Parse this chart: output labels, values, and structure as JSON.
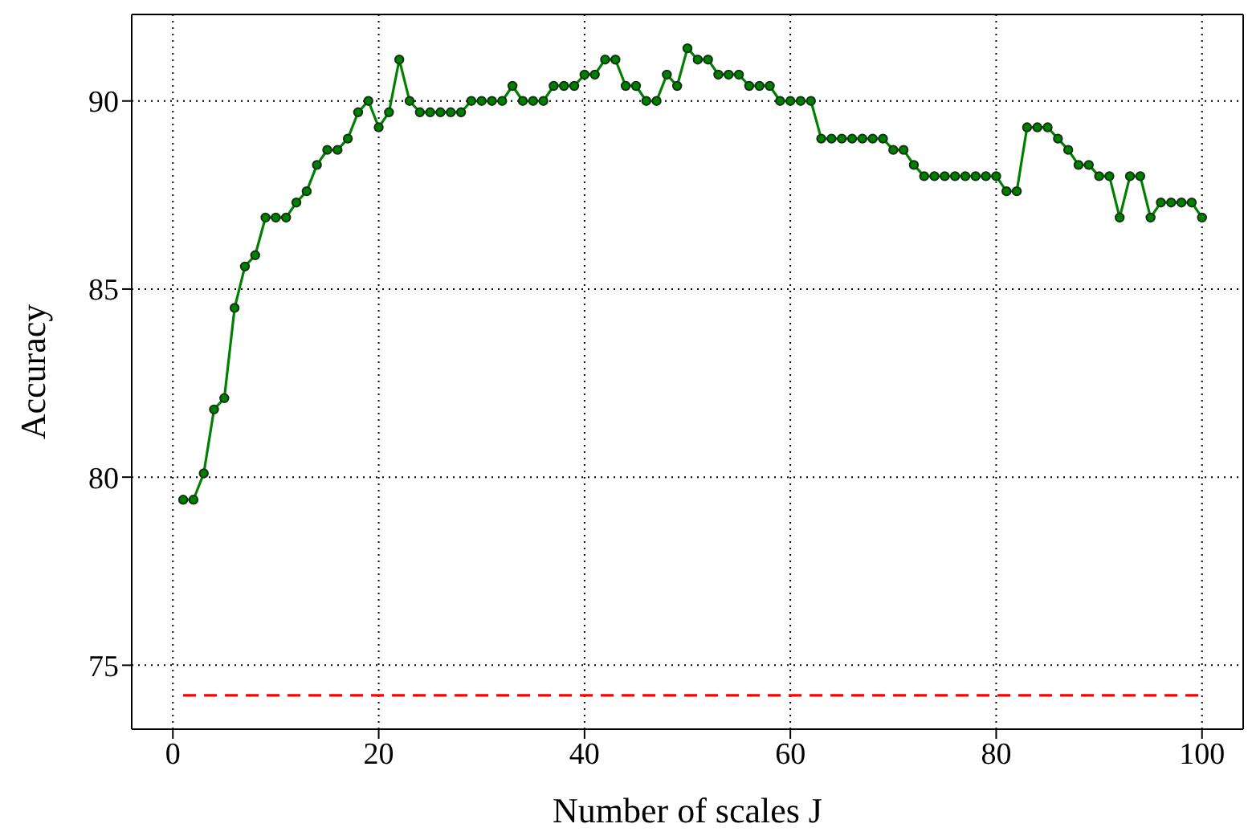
{
  "chart_data": {
    "type": "line",
    "xlabel": "Number of scales J",
    "ylabel": "Accuracy",
    "x": [
      1,
      2,
      3,
      4,
      5,
      6,
      7,
      8,
      9,
      10,
      11,
      12,
      13,
      14,
      15,
      16,
      17,
      18,
      19,
      20,
      21,
      22,
      23,
      24,
      25,
      26,
      27,
      28,
      29,
      30,
      31,
      32,
      33,
      34,
      35,
      36,
      37,
      38,
      39,
      40,
      41,
      42,
      43,
      44,
      45,
      46,
      47,
      48,
      49,
      50,
      51,
      52,
      53,
      54,
      55,
      56,
      57,
      58,
      59,
      60,
      61,
      62,
      63,
      64,
      65,
      66,
      67,
      68,
      69,
      70,
      71,
      72,
      73,
      74,
      75,
      76,
      77,
      78,
      79,
      80,
      81,
      82,
      83,
      84,
      85,
      86,
      87,
      88,
      89,
      90,
      91,
      92,
      93,
      94,
      95,
      96,
      97,
      98,
      99,
      100
    ],
    "series": [
      {
        "color": "#008000",
        "marker": "circle",
        "line_style": "solid",
        "values": [
          79.4,
          79.4,
          80.1,
          81.8,
          82.1,
          84.5,
          85.6,
          85.9,
          86.9,
          86.9,
          86.9,
          87.3,
          87.6,
          88.3,
          88.7,
          88.7,
          89.0,
          89.7,
          90.0,
          89.3,
          89.7,
          91.1,
          90.0,
          89.7,
          89.7,
          89.7,
          89.7,
          89.7,
          90.0,
          90.0,
          90.0,
          90.0,
          90.4,
          90.0,
          90.0,
          90.0,
          90.4,
          90.4,
          90.4,
          90.7,
          90.7,
          91.1,
          91.1,
          90.4,
          90.4,
          90.0,
          90.0,
          90.7,
          90.4,
          91.4,
          91.1,
          91.1,
          90.7,
          90.7,
          90.7,
          90.4,
          90.4,
          90.4,
          90.0,
          90.0,
          90.0,
          90.0,
          89.0,
          89.0,
          89.0,
          89.0,
          89.0,
          89.0,
          89.0,
          88.7,
          88.7,
          88.3,
          88.0,
          88.0,
          88.0,
          88.0,
          88.0,
          88.0,
          88.0,
          88.0,
          87.6,
          87.6,
          89.3,
          89.3,
          89.3,
          89.0,
          88.7,
          88.3,
          88.3,
          88.0,
          88.0,
          86.9,
          88.0,
          88.0,
          86.9,
          87.3,
          87.3,
          87.3,
          87.3,
          86.9
        ]
      },
      {
        "color": "#ff0000",
        "marker": "none",
        "line_style": "dashed",
        "x": [
          1,
          100
        ],
        "values": [
          74.2,
          74.2
        ]
      }
    ],
    "xlim": [
      -4,
      104
    ],
    "xticks": [
      0,
      20,
      40,
      60,
      80,
      100
    ],
    "ylim": [
      73.3,
      92.3
    ],
    "yticks": [
      75,
      80,
      85,
      90
    ],
    "grid": true
  }
}
